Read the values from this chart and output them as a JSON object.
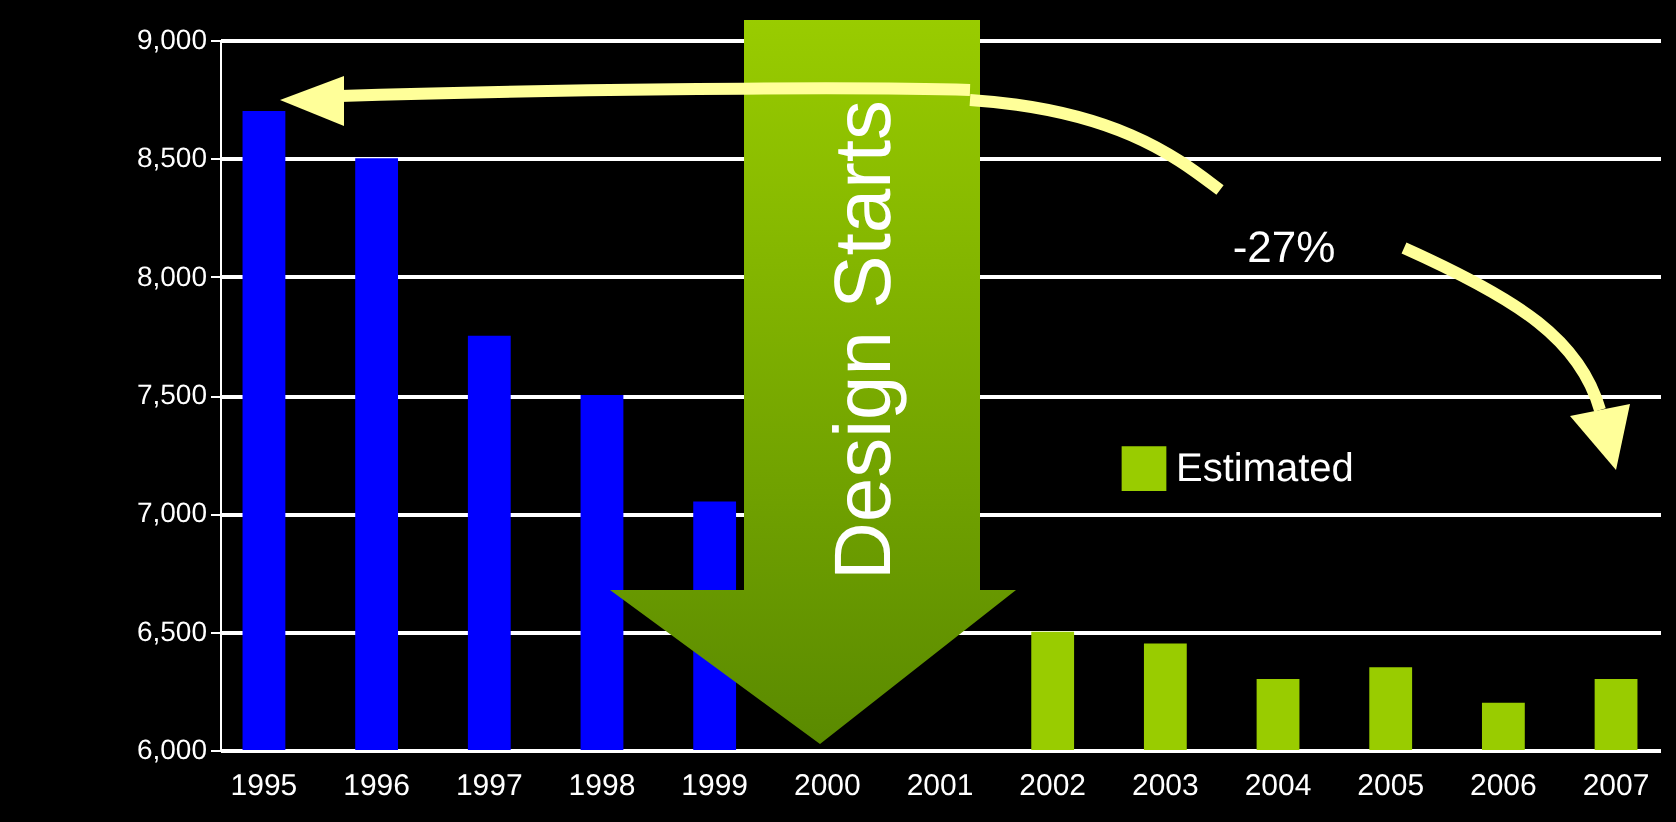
{
  "chart_data": {
    "type": "bar",
    "categories": [
      "1995",
      "1996",
      "1997",
      "1998",
      "1999",
      "2000",
      "2001",
      "2002",
      "2003",
      "2004",
      "2005",
      "2006",
      "2007"
    ],
    "series": [
      {
        "color": "#0000ff",
        "values": [
          8700,
          8500,
          7750,
          7500,
          7050,
          null,
          null,
          null,
          null,
          null,
          null,
          null,
          null
        ]
      },
      {
        "name": "Estimated",
        "color": "#99cc00",
        "values": [
          null,
          null,
          null,
          null,
          null,
          null,
          null,
          6500,
          6450,
          6300,
          6350,
          6200,
          6300
        ]
      }
    ],
    "ylim": [
      6000,
      9000
    ],
    "yticks": [
      {
        "value": 6000,
        "label": "6,000"
      },
      {
        "value": 6500,
        "label": "6,500"
      },
      {
        "value": 7000,
        "label": "7,000"
      },
      {
        "value": 7500,
        "label": "7,500"
      },
      {
        "value": 8000,
        "label": "8,000"
      },
      {
        "value": 8500,
        "label": "8,500"
      },
      {
        "value": 9000,
        "label": "9,000"
      }
    ],
    "grid": "y",
    "legend": "right",
    "annotations": [
      "Design Starts",
      "-27%"
    ]
  }
}
